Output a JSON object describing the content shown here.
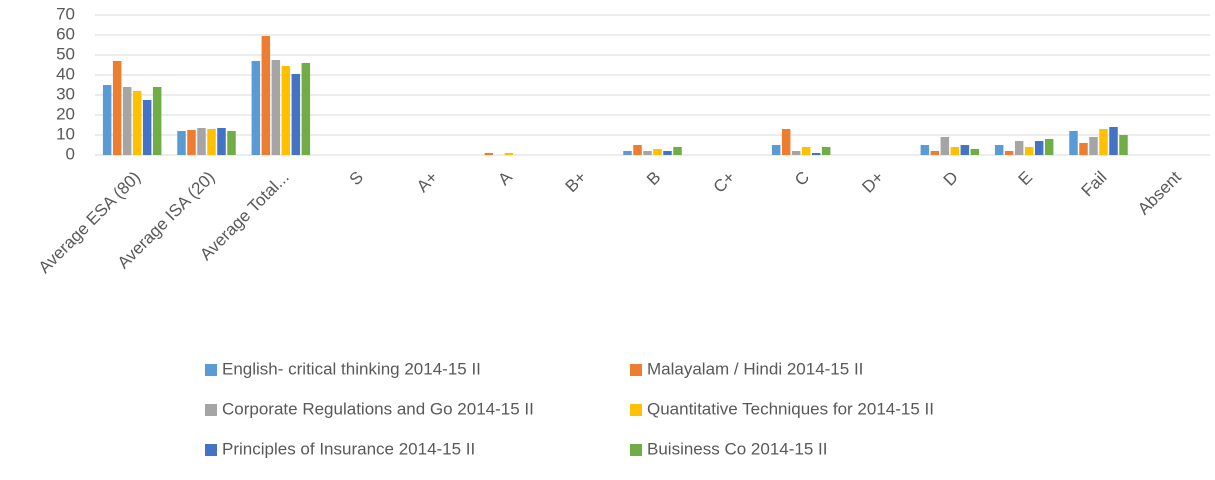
{
  "chart_data": {
    "type": "bar",
    "categories": [
      "Average ESA (80)",
      "Average ISA (20)",
      "Average Total...",
      "S",
      "A+",
      "A",
      "B+",
      "B",
      "C+",
      "C",
      "D+",
      "D",
      "E",
      "Fail",
      "Absent"
    ],
    "series": [
      {
        "name": "English- critical thinking 2014-15 II",
        "color": "#5b9bd5",
        "values": [
          35,
          12,
          47,
          0,
          0,
          0,
          0,
          2,
          0,
          5,
          0,
          5,
          5,
          12,
          0
        ]
      },
      {
        "name": "Malayalam / Hindi 2014-15 II",
        "color": "#ed7d31",
        "values": [
          47,
          12.5,
          59.5,
          0,
          0,
          1,
          0,
          5,
          0,
          13,
          0,
          2,
          2,
          6,
          0
        ]
      },
      {
        "name": "Corporate Regulations and Go 2014-15 II",
        "color": "#a5a5a5",
        "values": [
          34,
          13.5,
          47.5,
          0,
          0,
          0,
          0,
          2,
          0,
          2,
          0,
          9,
          7,
          9,
          0
        ]
      },
      {
        "name": "Quantitative Techniques for 2014-15 II",
        "color": "#ffc000",
        "values": [
          32,
          13,
          44.5,
          0,
          0,
          1,
          0,
          3,
          0,
          4,
          0,
          4,
          4,
          13,
          0
        ]
      },
      {
        "name": "Principles of Insurance 2014-15 II",
        "color": "#4472c4",
        "values": [
          27.5,
          13.5,
          40.5,
          0,
          0,
          0,
          0,
          2,
          0,
          1,
          0,
          5,
          7,
          14,
          0
        ]
      },
      {
        "name": "Buisiness Co 2014-15 II",
        "color": "#70ad47",
        "values": [
          34,
          12,
          46,
          0,
          0,
          0,
          0,
          4,
          0,
          4,
          0,
          3,
          8,
          10,
          0
        ]
      }
    ],
    "ylim": [
      0,
      70
    ],
    "yticks": [
      0,
      10,
      20,
      30,
      40,
      50,
      60,
      70
    ],
    "grid": true,
    "legend": "bottom"
  }
}
